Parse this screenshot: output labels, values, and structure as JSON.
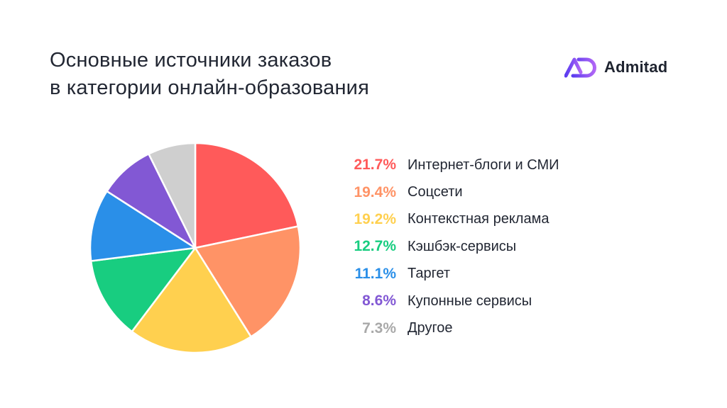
{
  "header": {
    "title_line1": "Основные источники заказов",
    "title_line2": "в категории онлайн-образования"
  },
  "brand": {
    "name": "Admitad",
    "colors": {
      "logo_gradient_start": "#5b3cf0",
      "logo_gradient_end": "#b066f5"
    }
  },
  "chart_data": {
    "type": "pie",
    "unit": "%",
    "legend_position": "right",
    "slices": [
      {
        "label": "Интернет-блоги и СМИ",
        "value": 21.7,
        "display": "21.7%",
        "color": "#ff5a5a"
      },
      {
        "label": "Соцсети",
        "value": 19.4,
        "display": "19.4%",
        "color": "#ff9366"
      },
      {
        "label": "Контекстная реклама",
        "value": 19.2,
        "display": "19.2%",
        "color": "#ffd04f"
      },
      {
        "label": "Кэшбэк-сервисы",
        "value": 12.7,
        "display": "12.7%",
        "color": "#18cd80"
      },
      {
        "label": "Таргет",
        "value": 11.1,
        "display": "11.1%",
        "color": "#2a8fe8"
      },
      {
        "label": "Купонные сервисы",
        "value": 8.6,
        "display": "8.6%",
        "color": "#8258d4"
      },
      {
        "label": "Другое",
        "value": 7.3,
        "display": "7.3%",
        "color": "#cfcfcf"
      }
    ]
  }
}
